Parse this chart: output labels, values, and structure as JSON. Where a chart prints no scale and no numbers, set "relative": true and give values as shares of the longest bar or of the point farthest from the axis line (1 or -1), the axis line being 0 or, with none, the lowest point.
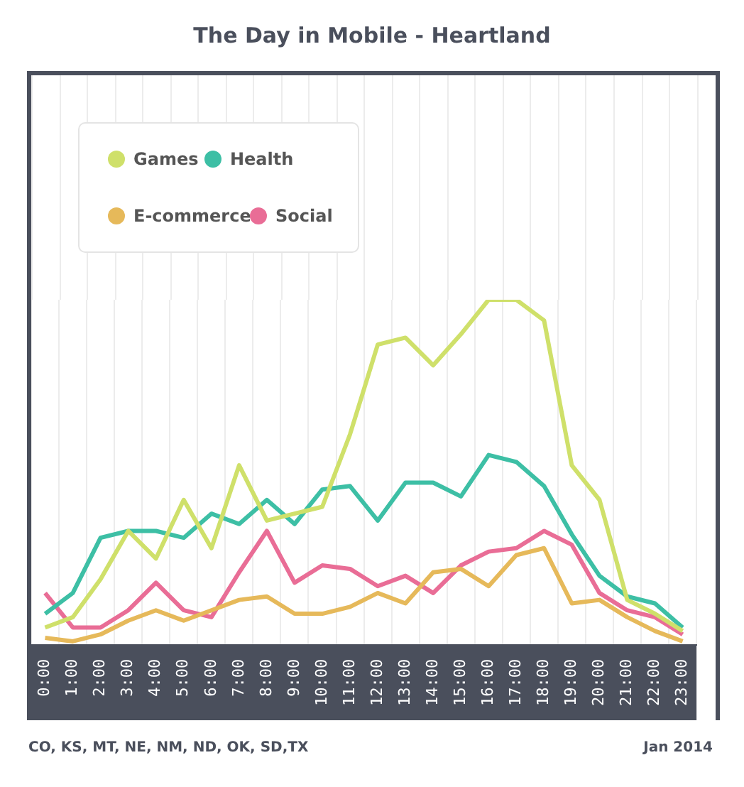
{
  "chart_data": {
    "type": "line",
    "title": "The Day in Mobile - Heartland",
    "relative": true,
    "grid": "x",
    "legend": "top left",
    "marker": "none",
    "line_style": "solid",
    "categories": [
      "0:00",
      "1:00",
      "2:00",
      "3:00",
      "4:00",
      "5:00",
      "6:00",
      "7:00",
      "8:00",
      "9:00",
      "10:00",
      "11:00",
      "12:00",
      "13:00",
      "14:00",
      "15:00",
      "16:00",
      "17:00",
      "18:00",
      "19:00",
      "20:00",
      "21:00",
      "22:00",
      "23:00"
    ],
    "series": [
      {
        "name": "Games",
        "color": "#cfe06a",
        "values": [
          0.05,
          0.08,
          0.19,
          0.33,
          0.25,
          0.42,
          0.28,
          0.52,
          0.36,
          0.38,
          0.4,
          0.61,
          0.87,
          0.89,
          0.81,
          0.9,
          1,
          1,
          0.94,
          0.52,
          0.42,
          0.13,
          0.09,
          0.04
        ]
      },
      {
        "name": "Health",
        "color": "#3dbfa5",
        "values": [
          0.09,
          0.15,
          0.31,
          0.33,
          0.33,
          0.31,
          0.38,
          0.35,
          0.42,
          0.35,
          0.45,
          0.46,
          0.36,
          0.47,
          0.47,
          0.43,
          0.55,
          0.53,
          0.46,
          0.32,
          0.2,
          0.14,
          0.12,
          0.05
        ]
      },
      {
        "name": "E-commerce",
        "color": "#e6b95a",
        "values": [
          0.02,
          0.01,
          0.03,
          0.07,
          0.1,
          0.07,
          0.1,
          0.13,
          0.14,
          0.09,
          0.09,
          0.11,
          0.15,
          0.12,
          0.21,
          0.22,
          0.17,
          0.26,
          0.28,
          0.12,
          0.13,
          0.08,
          0.04,
          0.01
        ]
      },
      {
        "name": "Social",
        "color": "#e96d96",
        "values": [
          0.15,
          0.05,
          0.05,
          0.1,
          0.18,
          0.1,
          0.08,
          0.21,
          0.33,
          0.18,
          0.23,
          0.22,
          0.17,
          0.2,
          0.15,
          0.23,
          0.27,
          0.28,
          0.33,
          0.29,
          0.15,
          0.1,
          0.08,
          0.03
        ]
      }
    ],
    "annotations": [
      "CO, KS, MT, NE, NM, ND, OK, SD,TX",
      "Jan 2014"
    ]
  }
}
